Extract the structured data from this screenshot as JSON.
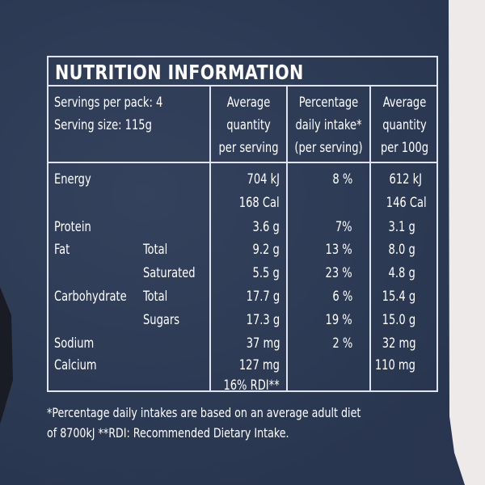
{
  "title": "NUTRITION INFORMATION",
  "servings_per_pack": "Servings per pack: 4",
  "serving_size": "Serving size: 115g",
  "headers": {
    "per_serving": [
      "Average",
      "quantity",
      "per serving"
    ],
    "daily_intake": [
      "Percentage",
      "daily intake*",
      "(per serving)"
    ],
    "per_100g": [
      "Average",
      "quantity",
      "per 100g"
    ]
  },
  "rows": {
    "energy": {
      "label": "Energy",
      "kj": "704 kJ",
      "cal": "168 Cal",
      "pct": "8 %",
      "kj100": "612 kJ",
      "cal100": "146 Cal"
    },
    "protein": {
      "label": "Protein",
      "serving": "3.6 g",
      "pct": "7%",
      "per100": "3.1 g"
    },
    "fat_total": {
      "label": "Fat",
      "sub": "Total",
      "serving": "9.2 g",
      "pct": "13 %",
      "per100": "8.0 g"
    },
    "fat_saturated": {
      "sub": "Saturated",
      "serving": "5.5 g",
      "pct": "23 %",
      "per100": "4.8 g"
    },
    "carb_total": {
      "label": "Carbohydrate",
      "sub": "Total",
      "serving": "17.7 g",
      "pct": "6 %",
      "per100": "15.4 g"
    },
    "carb_sugars": {
      "sub": "Sugars",
      "serving": "17.3 g",
      "pct": "19 %",
      "per100": "15.0 g"
    },
    "sodium": {
      "label": "Sodium",
      "serving": "37 mg",
      "pct": "2 %",
      "per100": "32 mg"
    },
    "calcium": {
      "label": "Calcium",
      "serving": "127 mg",
      "rdi": "16% RDI**",
      "per100": "110 mg"
    }
  },
  "footnote": [
    "*Percentage daily intakes are based on an average adult diet",
    "of 8700kJ **RDI: Recommended Dietary Intake."
  ],
  "colors": {
    "background": "#2c3a56",
    "text": "#ffffff",
    "border": "#dfe4ee"
  }
}
